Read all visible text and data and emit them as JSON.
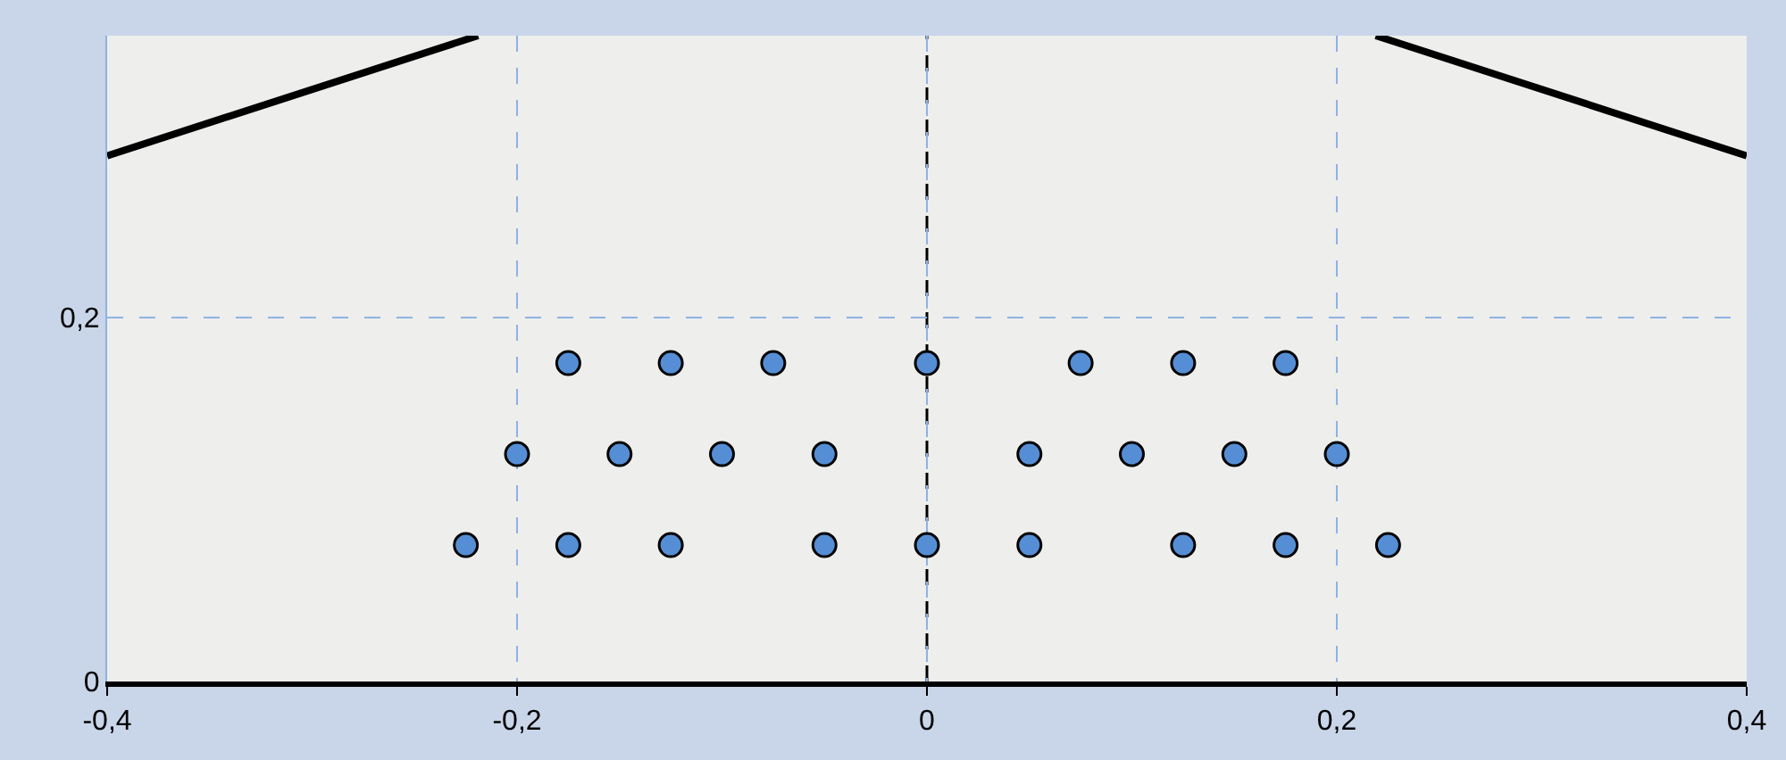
{
  "chart_data": {
    "type": "scatter",
    "series": [
      {
        "color": "#558ed5",
        "marker": "circle",
        "x": [
          -0.175,
          -0.125,
          -0.075,
          0,
          0.075,
          0.125,
          0.175,
          -0.2,
          -0.15,
          -0.1,
          -0.05,
          0.05,
          0.1,
          0.15,
          0.2,
          -0.225,
          -0.175,
          -0.125,
          -0.05,
          0,
          0.05,
          0.125,
          0.175,
          0.225
        ],
        "values": [
          0.175,
          0.175,
          0.175,
          0.175,
          0.175,
          0.175,
          0.175,
          0.125,
          0.125,
          0.125,
          0.125,
          0.125,
          0.125,
          0.125,
          0.125,
          0.075,
          0.075,
          0.075,
          0.075,
          0.075,
          0.075,
          0.075,
          0.075,
          0.075
        ]
      },
      {
        "type": "line",
        "color": "#000000",
        "marker": "none",
        "x": [
          -0.4,
          -0.219
        ],
        "values": [
          0.289,
          0.355
        ]
      },
      {
        "type": "line",
        "color": "#000000",
        "marker": "none",
        "x": [
          0.219,
          0.4
        ],
        "values": [
          0.355,
          0.289
        ]
      }
    ],
    "xlim": [
      -0.4,
      0.4
    ],
    "ylim": [
      0,
      0.355
    ],
    "xticks": [
      {
        "value": -0.4,
        "label": "-0,4"
      },
      {
        "value": -0.2,
        "label": "-0,2"
      },
      0,
      {
        "value": 0.2,
        "label": "0,2"
      },
      {
        "value": 0.4,
        "label": "0,4"
      }
    ],
    "yticks": [
      0,
      {
        "value": 0.2,
        "label": "0,2"
      }
    ],
    "ref_lines": [
      {
        "axis": "x",
        "value": 0,
        "color": "#000000",
        "line_style": "dashed"
      }
    ],
    "grid": true,
    "legend": false
  }
}
